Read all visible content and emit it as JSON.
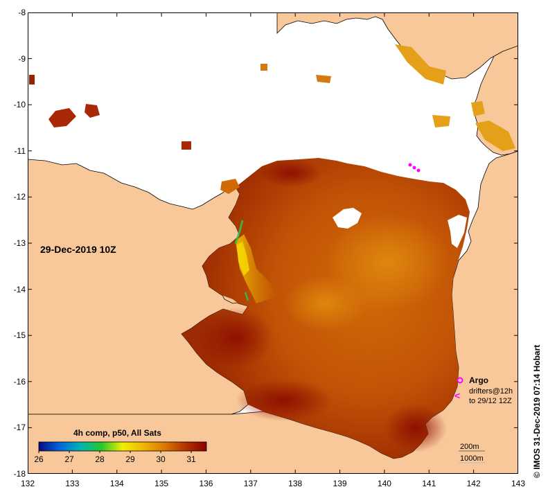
{
  "map": {
    "date_label": "29-Dec-2019 10Z",
    "credit": "© IMOS 31-Dec-2019 07:14 Hobart",
    "lon_range": [
      132,
      143
    ],
    "lat_range": [
      -18,
      -8
    ],
    "lon_ticks": [
      "132",
      "133",
      "134",
      "135",
      "136",
      "137",
      "138",
      "139",
      "140",
      "141",
      "142",
      "143"
    ],
    "lat_ticks": [
      "-8",
      "-9",
      "-10",
      "-11",
      "-12",
      "-13",
      "-14",
      "-15",
      "-16",
      "-17",
      "-18"
    ],
    "colors": {
      "land": "#f8c89a",
      "no_data": "#ffffff",
      "coast": "#000000"
    }
  },
  "colorbar": {
    "title": "4h comp, p50, All Sats",
    "ticks": [
      "26",
      "27",
      "28",
      "29",
      "30",
      "31"
    ],
    "range": [
      26,
      31.5
    ],
    "colors": [
      "#0a0a82",
      "#0064dc",
      "#00b4b4",
      "#28c828",
      "#f0f000",
      "#f0b400",
      "#dc7800",
      "#b43200",
      "#8c0000"
    ]
  },
  "legend": {
    "argo_label": "Argo",
    "drifters_label": "drifters@12h",
    "drifters_sub": "to 29/12 12Z",
    "argo_color": "#ff00ff",
    "contour_200": "200m",
    "contour_1000": "1000m"
  }
}
